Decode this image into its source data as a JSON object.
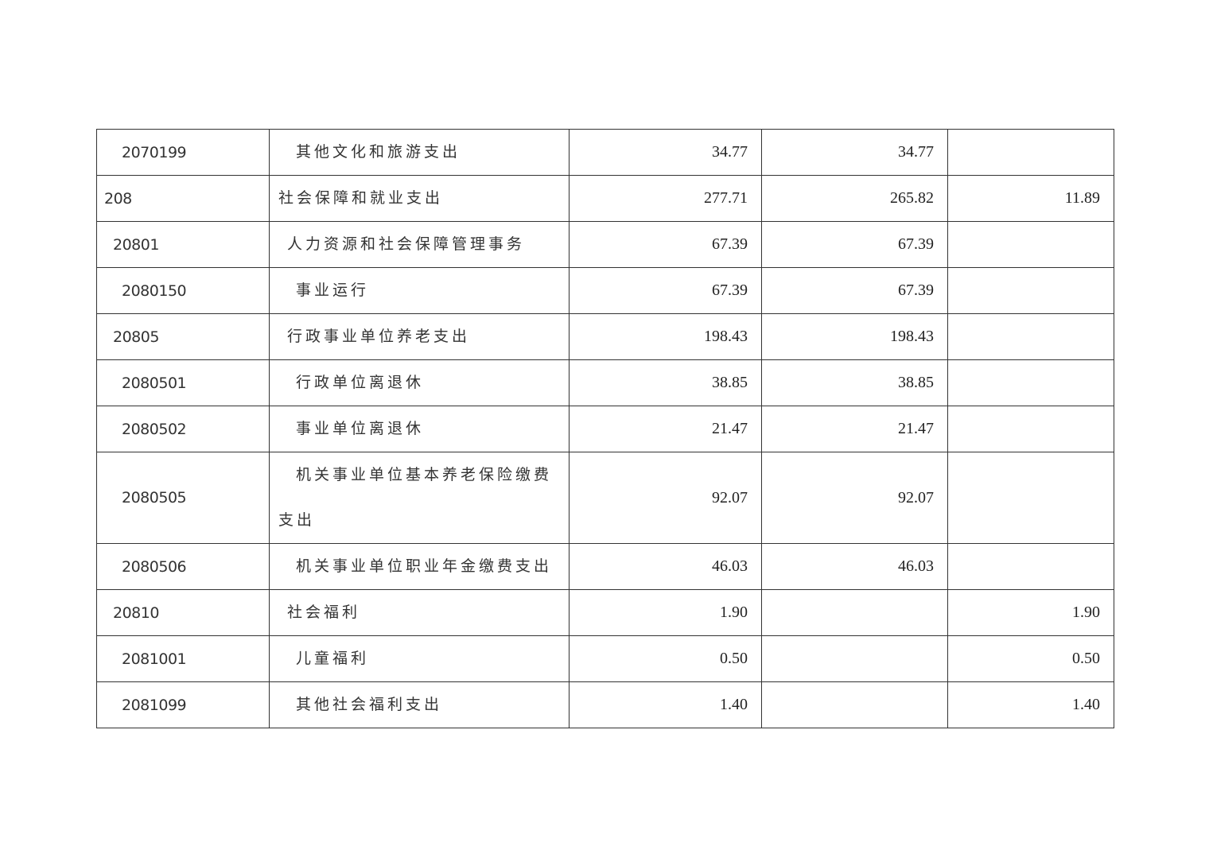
{
  "rows": [
    {
      "code": "2070199",
      "name": "其他文化和旅游支出",
      "level": 2,
      "total": "34.77",
      "basic": "34.77",
      "project": ""
    },
    {
      "code": "208",
      "name": "社会保障和就业支出",
      "level": 0,
      "total": "277.71",
      "basic": "265.82",
      "project": "11.89"
    },
    {
      "code": "20801",
      "name": "人力资源和社会保障管理事务",
      "level": 1,
      "total": "67.39",
      "basic": "67.39",
      "project": ""
    },
    {
      "code": "2080150",
      "name": "事业运行",
      "level": 2,
      "total": "67.39",
      "basic": "67.39",
      "project": ""
    },
    {
      "code": "20805",
      "name": "行政事业单位养老支出",
      "level": 1,
      "total": "198.43",
      "basic": "198.43",
      "project": ""
    },
    {
      "code": "2080501",
      "name": "行政单位离退休",
      "level": 2,
      "total": "38.85",
      "basic": "38.85",
      "project": ""
    },
    {
      "code": "2080502",
      "name": "事业单位离退休",
      "level": 2,
      "total": "21.47",
      "basic": "21.47",
      "project": ""
    },
    {
      "code": "2080505",
      "name": "机关事业单位基本养老保险缴费支出",
      "level": 2,
      "total": "92.07",
      "basic": "92.07",
      "project": ""
    },
    {
      "code": "2080506",
      "name": "机关事业单位职业年金缴费支出",
      "level": 2,
      "total": "46.03",
      "basic": "46.03",
      "project": ""
    },
    {
      "code": "20810",
      "name": "社会福利",
      "level": 1,
      "total": "1.90",
      "basic": "",
      "project": "1.90"
    },
    {
      "code": "2081001",
      "name": "儿童福利",
      "level": 2,
      "total": "0.50",
      "basic": "",
      "project": "0.50"
    },
    {
      "code": "2081099",
      "name": "其他社会福利支出",
      "level": 2,
      "total": "1.40",
      "basic": "",
      "project": "1.40"
    }
  ]
}
